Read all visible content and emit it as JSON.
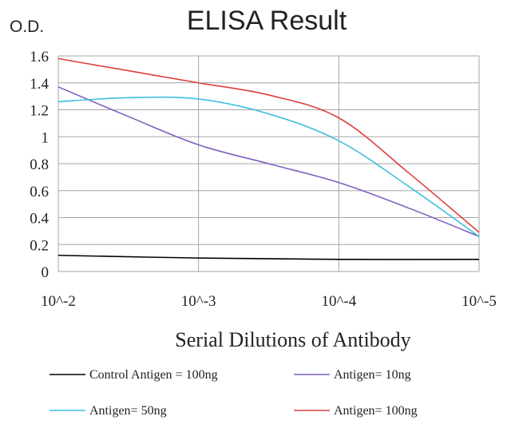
{
  "chart_data": {
    "type": "line",
    "title": "ELISA Result",
    "ylabel": "O.D.",
    "xlabel": "Serial Dilutions  of Antibody",
    "x_categories": [
      "10^-2",
      "10^-3",
      "10^-4",
      "10^-5"
    ],
    "y_ticks": [
      "0",
      "0.2",
      "0.4",
      "0.6",
      "0.8",
      "1",
      "1.2",
      "1.4",
      "1.6"
    ],
    "ylim": [
      0,
      1.6
    ],
    "x_scale": "log",
    "grid": true,
    "legend_position": "bottom",
    "series": [
      {
        "name": "Control Antigen = 100ng",
        "color": "#000000",
        "points": [
          [
            0,
            0.12
          ],
          [
            1,
            0.1
          ],
          [
            2,
            0.09
          ],
          [
            3,
            0.09
          ]
        ]
      },
      {
        "name": "Antigen= 10ng",
        "color": "#7f5fbf",
        "points": [
          [
            0,
            1.37
          ],
          [
            0.5,
            1.15
          ],
          [
            1,
            0.94
          ],
          [
            1.5,
            0.8
          ],
          [
            2,
            0.66
          ],
          [
            2.5,
            0.47
          ],
          [
            3,
            0.26
          ]
        ]
      },
      {
        "name": "Antigen= 50ng",
        "color": "#3fbfdf",
        "points": [
          [
            0,
            1.26
          ],
          [
            0.5,
            1.29
          ],
          [
            1,
            1.28
          ],
          [
            1.5,
            1.17
          ],
          [
            2,
            0.97
          ],
          [
            2.5,
            0.63
          ],
          [
            3,
            0.26
          ]
        ]
      },
      {
        "name": "Antigen= 100ng",
        "color": "#df3f3f",
        "points": [
          [
            0,
            1.58
          ],
          [
            0.5,
            1.49
          ],
          [
            1,
            1.4
          ],
          [
            1.5,
            1.31
          ],
          [
            2,
            1.14
          ],
          [
            2.5,
            0.73
          ],
          [
            3,
            0.29
          ]
        ]
      }
    ]
  }
}
